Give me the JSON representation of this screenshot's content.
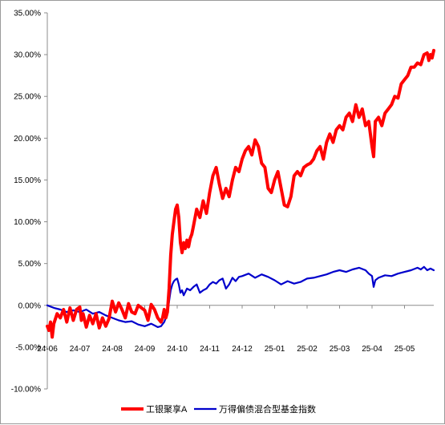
{
  "chart_data": {
    "type": "line",
    "title": "",
    "xlabel": "",
    "ylabel": "",
    "ylim": [
      -10,
      35
    ],
    "ytick_values": [
      -10,
      -5,
      0,
      5,
      10,
      15,
      20,
      25,
      30,
      35
    ],
    "ytick_labels": [
      "-10.00%",
      "-5.00%",
      "0.00%",
      "5.00%",
      "10.00%",
      "15.00%",
      "20.00%",
      "25.00%",
      "30.00%",
      "35.00%"
    ],
    "x_range": [
      0,
      12
    ],
    "x_ticks": [
      "24-06",
      "24-07",
      "24-08",
      "24-09",
      "24-10",
      "24-11",
      "24-12",
      "25-01",
      "25-02",
      "25-03",
      "25-04",
      "25-05"
    ],
    "x_unit": "month index (0 = 24-06)",
    "grid": false,
    "legend_position": "bottom",
    "series": [
      {
        "name": "工银聚享A",
        "color": "#ff0000",
        "x": [
          0,
          0.05,
          0.1,
          0.15,
          0.2,
          0.3,
          0.4,
          0.5,
          0.6,
          0.7,
          0.8,
          0.9,
          1.0,
          1.05,
          1.1,
          1.2,
          1.3,
          1.4,
          1.5,
          1.6,
          1.7,
          1.8,
          1.9,
          2.0,
          2.1,
          2.2,
          2.3,
          2.4,
          2.5,
          2.6,
          2.7,
          2.8,
          2.9,
          3.0,
          3.1,
          3.2,
          3.3,
          3.4,
          3.5,
          3.55,
          3.6,
          3.65,
          3.7,
          3.75,
          3.8,
          3.85,
          3.9,
          3.95,
          4.0,
          4.05,
          4.1,
          4.15,
          4.2,
          4.25,
          4.3,
          4.35,
          4.4,
          4.45,
          4.5,
          4.6,
          4.7,
          4.8,
          4.9,
          5.0,
          5.1,
          5.2,
          5.3,
          5.4,
          5.5,
          5.6,
          5.7,
          5.8,
          5.9,
          6.0,
          6.1,
          6.2,
          6.3,
          6.4,
          6.5,
          6.6,
          6.7,
          6.8,
          6.9,
          7.0,
          7.1,
          7.2,
          7.3,
          7.4,
          7.5,
          7.6,
          7.7,
          7.8,
          7.9,
          8.0,
          8.1,
          8.2,
          8.3,
          8.4,
          8.5,
          8.6,
          8.7,
          8.8,
          8.9,
          9.0,
          9.1,
          9.2,
          9.3,
          9.4,
          9.5,
          9.6,
          9.7,
          9.8,
          9.9,
          10.0,
          10.05,
          10.1,
          10.2,
          10.3,
          10.4,
          10.5,
          10.6,
          10.7,
          10.8,
          10.9,
          11.0,
          11.1,
          11.2,
          11.3,
          11.4,
          11.5,
          11.6,
          11.7,
          11.75,
          11.8,
          11.85,
          11.9
        ],
        "values": [
          -2.5,
          -3.0,
          -2.0,
          -3.8,
          -2.2,
          -1.0,
          -1.5,
          -0.5,
          -2.0,
          -0.3,
          -1.8,
          -0.5,
          -0.2,
          -1.8,
          -1.0,
          -2.6,
          -1.2,
          -2.2,
          -1.0,
          -2.7,
          -1.5,
          -2.5,
          -1.6,
          0.5,
          -0.8,
          0.3,
          -0.5,
          -1.5,
          0.2,
          -0.8,
          -1.0,
          0.0,
          -0.3,
          -0.6,
          -1.8,
          0.1,
          -0.5,
          -1.5,
          -2.0,
          -1.5,
          -0.5,
          -1.5,
          -0.8,
          2.0,
          6.0,
          8.5,
          10.0,
          11.5,
          12.0,
          10.5,
          7.5,
          6.3,
          7.5,
          6.8,
          7.8,
          7.0,
          8.0,
          8.5,
          9.5,
          11.5,
          10.5,
          12.5,
          11.0,
          13.5,
          15.5,
          16.5,
          14.5,
          12.8,
          14.0,
          13.0,
          15.0,
          16.5,
          16.0,
          17.5,
          18.5,
          19.0,
          18.0,
          19.8,
          19.0,
          17.0,
          16.5,
          14.0,
          13.5,
          15.0,
          16.0,
          14.0,
          12.0,
          11.8,
          13.0,
          15.5,
          16.0,
          15.5,
          16.5,
          16.8,
          17.0,
          17.5,
          18.5,
          19.0,
          17.5,
          19.5,
          20.5,
          19.5,
          21.0,
          21.5,
          21.0,
          22.5,
          23.0,
          22.0,
          24.0,
          22.5,
          23.5,
          21.5,
          22.0,
          19.0,
          17.8,
          22.0,
          22.5,
          21.5,
          23.0,
          23.5,
          24.0,
          25.0,
          24.8,
          26.5,
          27.0,
          27.5,
          28.5,
          28.5,
          29.0,
          28.8,
          30.0,
          30.2,
          29.3,
          30.0,
          29.6,
          30.5
        ]
      },
      {
        "name": "万得偏债混合型基金指数",
        "color": "#0000cc",
        "x": [
          0,
          0.2,
          0.4,
          0.6,
          0.8,
          1.0,
          1.2,
          1.4,
          1.6,
          1.8,
          2.0,
          2.2,
          2.4,
          2.6,
          2.8,
          3.0,
          3.2,
          3.4,
          3.5,
          3.6,
          3.7,
          3.75,
          3.8,
          3.85,
          3.9,
          3.95,
          4.0,
          4.05,
          4.1,
          4.15,
          4.2,
          4.3,
          4.4,
          4.5,
          4.6,
          4.7,
          4.8,
          4.9,
          5.0,
          5.1,
          5.2,
          5.3,
          5.4,
          5.5,
          5.6,
          5.7,
          5.8,
          5.9,
          6.0,
          6.2,
          6.4,
          6.6,
          6.8,
          7.0,
          7.2,
          7.4,
          7.6,
          7.8,
          8.0,
          8.2,
          8.4,
          8.6,
          8.8,
          9.0,
          9.2,
          9.4,
          9.6,
          9.8,
          9.9,
          10.0,
          10.05,
          10.1,
          10.2,
          10.4,
          10.6,
          10.8,
          11.0,
          11.2,
          11.4,
          11.5,
          11.6,
          11.7,
          11.8,
          11.9
        ],
        "values": [
          0.0,
          -0.3,
          -0.5,
          -0.8,
          -0.6,
          -0.8,
          -0.5,
          -1.0,
          -0.8,
          -1.2,
          -1.5,
          -1.8,
          -2.0,
          -1.9,
          -2.3,
          -2.5,
          -2.2,
          -2.6,
          -2.5,
          -2.0,
          -1.0,
          0.5,
          1.8,
          2.5,
          2.9,
          3.1,
          3.2,
          2.5,
          1.5,
          1.8,
          1.2,
          2.0,
          1.8,
          2.2,
          2.5,
          1.5,
          1.8,
          2.0,
          2.5,
          2.8,
          2.6,
          3.0,
          3.2,
          2.0,
          2.5,
          3.3,
          2.9,
          3.4,
          3.5,
          3.8,
          3.3,
          3.7,
          3.4,
          3.0,
          2.5,
          2.9,
          2.6,
          2.8,
          3.2,
          3.3,
          3.5,
          3.7,
          4.0,
          4.2,
          4.0,
          4.3,
          4.5,
          4.2,
          3.8,
          3.5,
          2.2,
          3.0,
          3.3,
          3.6,
          3.5,
          3.8,
          4.0,
          4.2,
          4.5,
          4.3,
          4.6,
          4.2,
          4.4,
          4.2
        ]
      }
    ]
  }
}
